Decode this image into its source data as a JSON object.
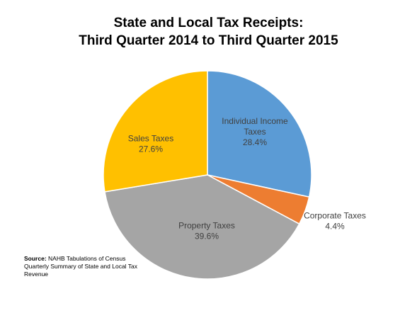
{
  "title": {
    "line1": "State and Local Tax Receipts:",
    "line2": "Third Quarter 2014 to Third Quarter 2015"
  },
  "source": {
    "label": "Source:",
    "text": "NAHB Tabulations of Census Quarterly Summary of State and Local Tax Revenue"
  },
  "chart_data": {
    "type": "pie",
    "title": "State and Local Tax Receipts: Third Quarter 2014 to Third Quarter 2015",
    "start_angle": "12 o'clock",
    "direction": "clockwise",
    "slices": [
      {
        "label_lines": [
          "Individual Income",
          "Taxes"
        ],
        "value": 28.4,
        "value_label": "28.4%",
        "color": "#5B9BD5",
        "label_color": "#404040",
        "label_position": "inside"
      },
      {
        "label_lines": [
          "Corporate Taxes"
        ],
        "value": 4.4,
        "value_label": "4.4%",
        "color": "#ED7D31",
        "label_color": "#404040",
        "label_position": "outside"
      },
      {
        "label_lines": [
          "Property Taxes"
        ],
        "value": 39.6,
        "value_label": "39.6%",
        "color": "#A5A5A5",
        "label_color": "#404040",
        "label_position": "inside"
      },
      {
        "label_lines": [
          "Sales Taxes"
        ],
        "value": 27.6,
        "value_label": "27.6%",
        "color": "#FFC000",
        "label_color": "#404040",
        "label_position": "inside"
      }
    ]
  }
}
